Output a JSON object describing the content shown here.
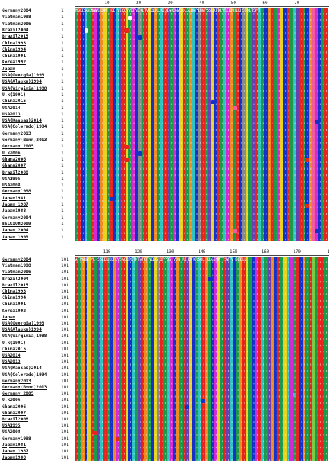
{
  "panel1": {
    "ruler_ticks": [
      "10",
      "20",
      "30",
      "40",
      "50",
      "60",
      "70"
    ],
    "consensus_text": "MSKESGKNWWEKDKF KE VEQQYVEFYEKLTVIDLKLKIQIWKDNYDDLSLDNPLHNPSSLKFDLVRIKNHLKHSFQLTSMT",
    "start_number": "1",
    "sequences": [
      "Germany2004",
      "Vietnam1998",
      "Vietnam2006",
      "Brazil2004",
      "Brazil2015",
      "China1993",
      "China1994",
      "China1991",
      "Korea1992",
      "Japan",
      "USA(Georgia)1993",
      "USA(Alaska)1994",
      "USA(Virginia)1988",
      "U.k(1991)",
      "China2015",
      "USA2014",
      "USA2013",
      "USA(Kansas)2014",
      "USA(Colorado)1994",
      "Germany2013",
      "Germany(Bonn)2013",
      "Germany 2005",
      "U.k2006",
      "Ghana2006",
      "Ghana2007",
      "Brazil2008",
      "USA1995",
      "USA2008",
      "Germany1998",
      "Japan1981",
      "Japan 1987",
      "Japan1988",
      "Germany2004",
      "BELGIUM2009",
      "Japan 2004",
      "Japan 1999"
    ]
  },
  "panel2": {
    "ruler_ticks": [
      "110",
      "120",
      "130",
      "140",
      "150",
      "160",
      "170",
      "1"
    ],
    "consensus_text": "AFPGKN VL-SSEDLKKPQVSVQLPGTNTVPGFNELG QPPQS VDN RIHDFKRSQL KLGINPTTSWTV DEELL",
    "start_number": "101",
    "sequences": [
      "Germany2004",
      "Vietnam1998",
      "Vietnam2006",
      "Brazil2004",
      "Brazil2015",
      "China1993",
      "China1994",
      "China1991",
      "Korea1992",
      "Japan",
      "USA(Georgia)1993",
      "USA(Alaska)1994",
      "USA(Virginia)1988",
      "U.k(1991)",
      "China2015",
      "USA2014",
      "USA2013",
      "USA(Kansas)2014",
      "USA(Colorado)1994",
      "Germany2013",
      "Germany(Bonn)2013",
      "Germany 2005",
      "U.k2006",
      "Ghana2006",
      "Ghana2007",
      "Brazil2008",
      "USA1995",
      "USA2008",
      "Germany1998",
      "Japan1981",
      "Japan 1987",
      "Japan1988"
    ]
  },
  "colors": {
    "green": "#1a9a4a",
    "red": "#e8251c",
    "blue": "#1631c8",
    "cyan": "#2ec4c4",
    "magenta": "#d42ad4",
    "orange": "#f08a1e",
    "yellow": "#e8d21e",
    "purple": "#6a3fb0",
    "grey": "#8a8a8a",
    "pink": "#f05aa0",
    "teal": "#128a8a",
    "brown": "#b5651d",
    "lime": "#7ac943"
  }
}
